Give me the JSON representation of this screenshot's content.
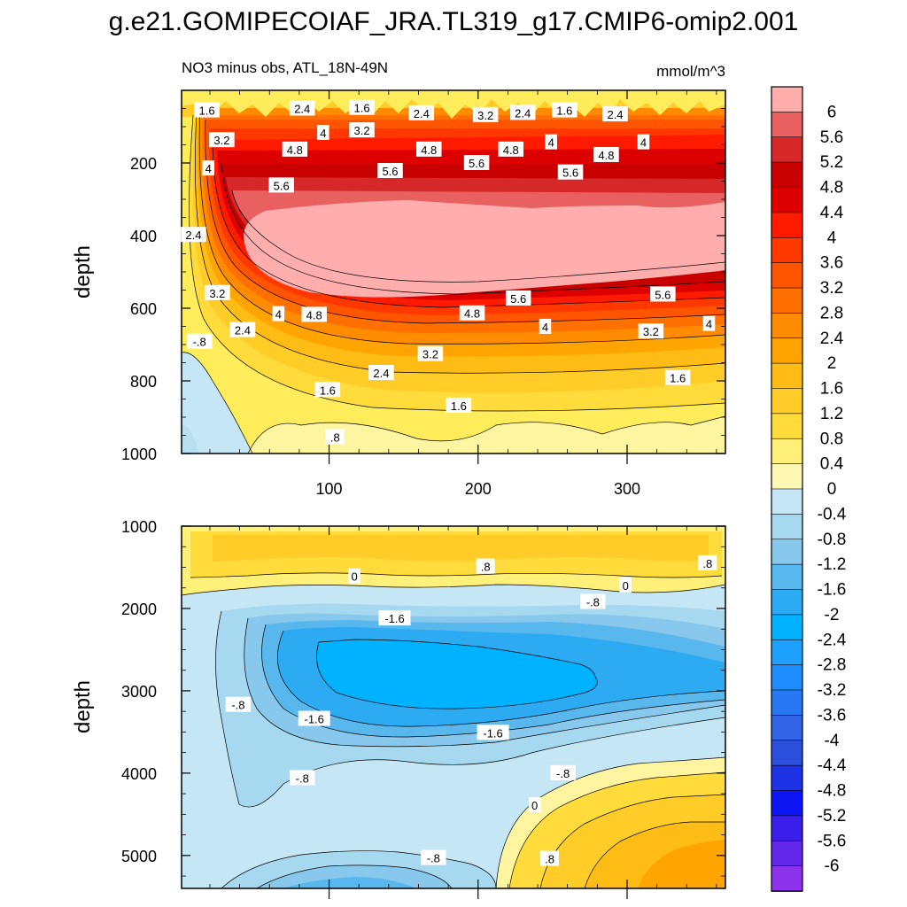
{
  "title": "g.e21.GOMIPECOIAF_JRA.TL319_g17.CMIP6-omip2.001",
  "chart_data": {
    "type": "heatmap",
    "title": "g.e21.GOMIPECOIAF_JRA.TL319_g17.CMIP6-omip2.001",
    "subtitle_left": "NO3 minus obs, ATL_18N-49N",
    "units": "mmol/m^3",
    "ylabel": "depth",
    "xlim": [
      1,
      366
    ],
    "x_ticks": [
      "100",
      "200",
      "300"
    ],
    "panels": [
      {
        "name": "upper",
        "ylim": [
          0,
          1000
        ],
        "y_ticks": [
          "200",
          "400",
          "600",
          "800",
          "1000"
        ],
        "y_tick_values": [
          200,
          400,
          600,
          800,
          1000
        ],
        "contour_labels": [
          {
            "t": "1.6",
            "x": 18,
            "y": 55
          },
          {
            "t": "2.4",
            "x": 82,
            "y": 50
          },
          {
            "t": "1.6",
            "x": 122,
            "y": 48
          },
          {
            "t": "2.4",
            "x": 162,
            "y": 63
          },
          {
            "t": "3.2",
            "x": 205,
            "y": 68
          },
          {
            "t": "2.4",
            "x": 230,
            "y": 62
          },
          {
            "t": "1.6",
            "x": 258,
            "y": 55
          },
          {
            "t": "2.4",
            "x": 292,
            "y": 66
          },
          {
            "t": "3.2",
            "x": 28,
            "y": 137
          },
          {
            "t": "4",
            "x": 96,
            "y": 117
          },
          {
            "t": "3.2",
            "x": 122,
            "y": 110
          },
          {
            "t": "4.8",
            "x": 77,
            "y": 163
          },
          {
            "t": "4.8",
            "x": 167,
            "y": 163
          },
          {
            "t": "5.6",
            "x": 199,
            "y": 200
          },
          {
            "t": "4.8",
            "x": 222,
            "y": 163
          },
          {
            "t": "4",
            "x": 249,
            "y": 143
          },
          {
            "t": "4.8",
            "x": 286,
            "y": 178
          },
          {
            "t": "4",
            "x": 311,
            "y": 143
          },
          {
            "t": "4",
            "x": 19,
            "y": 215
          },
          {
            "t": "5.6",
            "x": 68,
            "y": 262
          },
          {
            "t": "5.6",
            "x": 141,
            "y": 222
          },
          {
            "t": "5.6",
            "x": 262,
            "y": 226
          },
          {
            "t": "2.4",
            "x": 9,
            "y": 398
          },
          {
            "t": "3.2",
            "x": 25,
            "y": 558
          },
          {
            "t": "4.8",
            "x": 90,
            "y": 618
          },
          {
            "t": "5.6",
            "x": 227,
            "y": 573
          },
          {
            "t": "4.8",
            "x": 196,
            "y": 614
          },
          {
            "t": "5.6",
            "x": 324,
            "y": 562
          },
          {
            "t": "4",
            "x": 66,
            "y": 616
          },
          {
            "t": "2.4",
            "x": 42,
            "y": 660
          },
          {
            "t": "4",
            "x": 245,
            "y": 651
          },
          {
            "t": "3.2",
            "x": 316,
            "y": 664
          },
          {
            "t": "4",
            "x": 355,
            "y": 643
          },
          {
            "t": "-.8",
            "x": 13,
            "y": 692
          },
          {
            "t": "3.2",
            "x": 168,
            "y": 726
          },
          {
            "t": "2.4",
            "x": 135,
            "y": 778
          },
          {
            "t": "1.6",
            "x": 99,
            "y": 825
          },
          {
            "t": "1.6",
            "x": 334,
            "y": 792
          },
          {
            "t": "1.6",
            "x": 187,
            "y": 868
          },
          {
            "t": ".8",
            "x": 104,
            "y": 955
          }
        ]
      },
      {
        "name": "lower",
        "ylim": [
          1000,
          5400
        ],
        "y_ticks": [
          "1000",
          "2000",
          "3000",
          "4000",
          "5000"
        ],
        "y_tick_values": [
          1000,
          2000,
          3000,
          4000,
          5000
        ],
        "contour_labels": [
          {
            "t": ".8",
            "x": 205,
            "y": 1490
          },
          {
            "t": ".8",
            "x": 354,
            "y": 1450
          },
          {
            "t": "0",
            "x": 117,
            "y": 1610
          },
          {
            "t": "0",
            "x": 299,
            "y": 1720
          },
          {
            "t": "-.8",
            "x": 277,
            "y": 1920
          },
          {
            "t": "-1.6",
            "x": 144,
            "y": 2120
          },
          {
            "t": "-.8",
            "x": 39,
            "y": 3170
          },
          {
            "t": "-1.6",
            "x": 90,
            "y": 3340
          },
          {
            "t": "-1.6",
            "x": 210,
            "y": 3510
          },
          {
            "t": "-.8",
            "x": 82,
            "y": 4060
          },
          {
            "t": "-.8",
            "x": 257,
            "y": 4000
          },
          {
            "t": "0",
            "x": 238,
            "y": 4390
          },
          {
            "t": "-.8",
            "x": 170,
            "y": 5030
          },
          {
            "t": ".8",
            "x": 248,
            "y": 5040
          }
        ]
      }
    ],
    "colorbar": {
      "levels": [
        "6",
        "5.6",
        "5.2",
        "4.8",
        "4.4",
        "4",
        "3.6",
        "3.2",
        "2.8",
        "2.4",
        "2",
        "1.6",
        "1.2",
        "0.8",
        "0.4",
        "0",
        "-0.4",
        "-0.8",
        "-1.2",
        "-1.6",
        "-2",
        "-2.4",
        "-2.8",
        "-3.2",
        "-3.6",
        "-4",
        "-4.4",
        "-4.8",
        "-5.2",
        "-5.6",
        "-6"
      ],
      "colors": [
        "#ffadad",
        "#e86060",
        "#d62828",
        "#c80000",
        "#dc0000",
        "#ff1a00",
        "#ff3800",
        "#ff5500",
        "#ff7000",
        "#ff8c00",
        "#ffa400",
        "#ffbc14",
        "#ffcc28",
        "#ffdc3c",
        "#fff07a",
        "#fff8b4",
        "#c5e6f5",
        "#a6d8f0",
        "#88c8ec",
        "#58b8ee",
        "#2caaf2",
        "#00b2ff",
        "#1ea0ff",
        "#1e8cff",
        "#2878f4",
        "#3264e8",
        "#2d50dc",
        "#1e32e6",
        "#0f14f5",
        "#3c1eeb",
        "#6428eb",
        "#8c32eb"
      ]
    }
  }
}
